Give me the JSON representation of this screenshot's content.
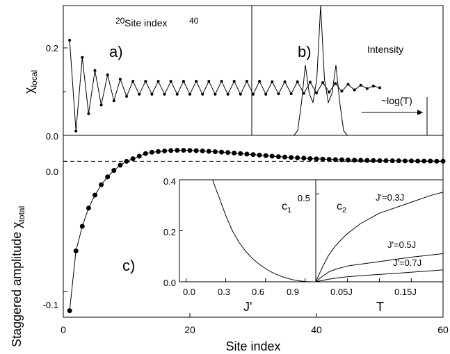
{
  "figure": {
    "panel_a_label": "a)",
    "panel_b_label": "b)",
    "panel_c_label": "c)",
    "panel_c1_label": "c",
    "panel_c1_sub": "1",
    "panel_c2_label": "c",
    "panel_c2_sub": "2"
  },
  "chart_data": [
    {
      "id": "a",
      "type": "line",
      "ylabel_main": "χ",
      "ylabel_sub": "local",
      "top_axis_label": "Site index",
      "top_ticks": [
        "20",
        "40"
      ],
      "ylim": [
        0,
        0.3
      ],
      "yticks": [
        "0.0",
        "0.2"
      ],
      "series": [
        {
          "x_start": 1,
          "values": [
            0.22,
            0.01,
            0.18,
            0.05,
            0.15,
            0.07,
            0.14,
            0.08,
            0.13,
            0.09,
            0.125,
            0.095,
            0.125,
            0.095,
            0.125,
            0.095,
            0.125,
            0.095,
            0.125,
            0.095,
            0.125,
            0.095,
            0.125,
            0.095,
            0.125,
            0.095,
            0.125,
            0.095,
            0.125,
            0.095,
            0.125,
            0.095,
            0.124,
            0.096,
            0.124,
            0.096,
            0.124,
            0.097,
            0.123,
            0.098,
            0.122,
            0.1,
            0.12,
            0.102,
            0.118,
            0.105,
            0.116,
            0.108,
            0.114,
            0.11
          ]
        }
      ]
    },
    {
      "id": "b",
      "type": "line",
      "annotation_intensity": "Intensity",
      "annotation_log": "~log(T)",
      "ylim": [
        0,
        1
      ],
      "x": [
        0,
        20,
        22,
        24,
        26,
        28,
        30,
        32,
        34,
        36,
        38,
        40,
        42,
        44,
        46,
        48,
        50,
        52,
        54,
        56,
        58,
        60,
        62,
        100
      ],
      "values": [
        0,
        0,
        0,
        0.05,
        0.35,
        0.75,
        0.45,
        0.35,
        0.6,
        1.4,
        0.6,
        0.35,
        0.45,
        0.75,
        0.35,
        0.05,
        0,
        0,
        0,
        0,
        0,
        0,
        0,
        0
      ]
    },
    {
      "id": "c",
      "type": "scatter",
      "xlabel": "Site index",
      "ylabel_main": "Staggered amplitude χ",
      "ylabel_sub": "total",
      "xlim": [
        0,
        60
      ],
      "ylim": [
        -0.12,
        0.02
      ],
      "xticks": [
        "0",
        "20",
        "40",
        "60"
      ],
      "yticks": [
        "0.0",
        "-0.1"
      ],
      "dashed_zero_line": true,
      "series": [
        {
          "x": [
            1,
            2,
            3,
            4,
            5,
            6,
            7,
            8,
            9,
            10,
            11,
            12,
            13,
            14,
            15,
            16,
            17,
            18,
            19,
            20,
            21,
            22,
            23,
            24,
            25,
            26,
            27,
            28,
            29,
            30,
            31,
            32,
            33,
            34,
            35,
            36,
            37,
            38,
            39,
            40,
            41,
            42,
            43,
            44,
            45,
            46,
            47,
            48,
            49,
            50,
            51,
            52,
            53,
            54,
            55,
            56,
            57,
            58,
            59,
            60
          ],
          "y": [
            -0.115,
            -0.069,
            -0.05,
            -0.036,
            -0.026,
            -0.018,
            -0.012,
            -0.007,
            -0.003,
            0.0,
            0.002,
            0.004,
            0.006,
            0.007,
            0.0075,
            0.008,
            0.0083,
            0.0085,
            0.0085,
            0.0084,
            0.0082,
            0.008,
            0.0077,
            0.0074,
            0.0071,
            0.0068,
            0.0064,
            0.006,
            0.0056,
            0.0052,
            0.0048,
            0.0044,
            0.004,
            0.0036,
            0.0033,
            0.003,
            0.0027,
            0.0024,
            0.0021,
            0.0019,
            0.0017,
            0.0015,
            0.0013,
            0.0012,
            0.001,
            0.0009,
            0.0008,
            0.0007,
            0.0006,
            0.0005,
            0.0005,
            0.0004,
            0.0004,
            0.0003,
            0.0003,
            0.0002,
            0.0002,
            0.0002,
            0.0001,
            0.0001
          ]
        }
      ]
    },
    {
      "id": "c1",
      "type": "line",
      "xlabel": "J'",
      "xlim": [
        -0.05,
        0.98
      ],
      "ylim": [
        0,
        0.4
      ],
      "xticks": [
        "0.0",
        "0.3",
        "0.6",
        "0.9"
      ],
      "yticks": [
        "0.0",
        "0.2",
        "0.4"
      ],
      "x": [
        0.2,
        0.25,
        0.3,
        0.35,
        0.4,
        0.45,
        0.5,
        0.55,
        0.6,
        0.65,
        0.7,
        0.75,
        0.8,
        0.85,
        0.9,
        0.95
      ],
      "values": [
        0.4,
        0.33,
        0.26,
        0.2,
        0.155,
        0.12,
        0.092,
        0.07,
        0.052,
        0.037,
        0.025,
        0.016,
        0.009,
        0.004,
        0.001,
        0.0
      ]
    },
    {
      "id": "c2",
      "type": "line",
      "xlabel": "T",
      "xlim": [
        0,
        0.2
      ],
      "ylim": [
        0,
        0.58
      ],
      "xticks": [
        "0.05J",
        "0.15J"
      ],
      "yticks": [
        "0.5"
      ],
      "series": [
        {
          "name": "J'=0.3J",
          "x": [
            0,
            0.01,
            0.02,
            0.03,
            0.04,
            0.05,
            0.07,
            0.09,
            0.1,
            0.12,
            0.14,
            0.16,
            0.18,
            0.2
          ],
          "values": [
            0,
            0.08,
            0.15,
            0.2,
            0.24,
            0.275,
            0.33,
            0.37,
            0.39,
            0.415,
            0.44,
            0.465,
            0.49,
            0.51
          ]
        },
        {
          "name": "J'=0.5J",
          "x": [
            0,
            0.01,
            0.02,
            0.03,
            0.05,
            0.07,
            0.09,
            0.11,
            0.13,
            0.15,
            0.17,
            0.2
          ],
          "values": [
            0,
            0.03,
            0.055,
            0.07,
            0.09,
            0.1,
            0.11,
            0.12,
            0.13,
            0.14,
            0.148,
            0.16
          ]
        },
        {
          "name": "J'=0.7J",
          "x": [
            0,
            0.02,
            0.04,
            0.06,
            0.08,
            0.1,
            0.12,
            0.14,
            0.16,
            0.18,
            0.2
          ],
          "values": [
            0,
            0.015,
            0.025,
            0.032,
            0.037,
            0.042,
            0.047,
            0.052,
            0.057,
            0.062,
            0.068
          ]
        }
      ]
    }
  ]
}
